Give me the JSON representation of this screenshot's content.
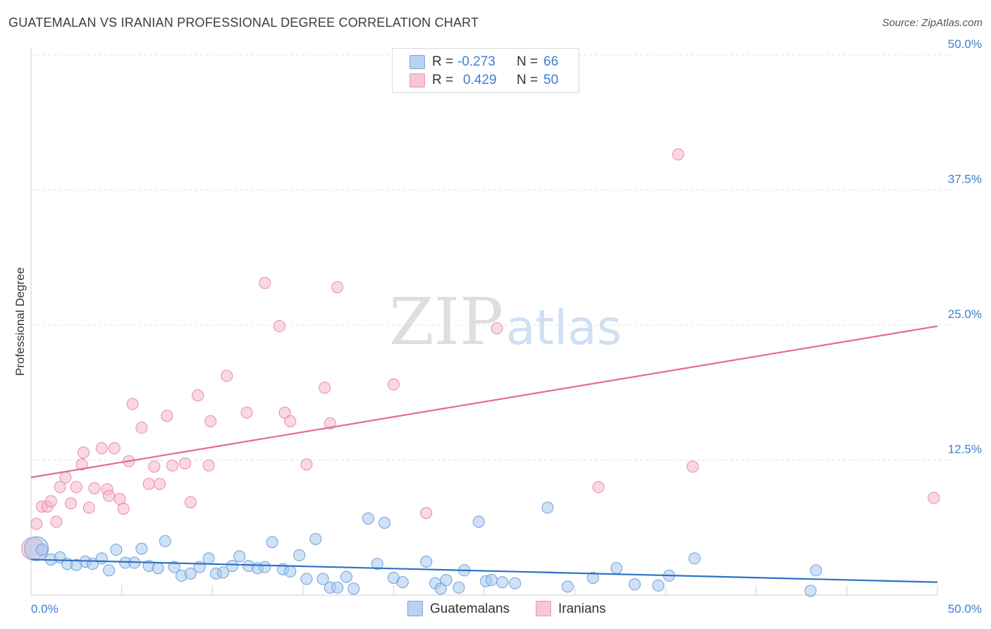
{
  "header": {
    "title": "GUATEMALAN VS IRANIAN PROFESSIONAL DEGREE CORRELATION CHART",
    "source": "Source: ZipAtlas.com"
  },
  "watermark": {
    "part1": "ZIP",
    "part2": "atlas"
  },
  "legend": {
    "guatemalans": {
      "r_label": "R =",
      "r_value": "-0.273",
      "n_label": "N =",
      "n_value": "66"
    },
    "iranians": {
      "r_label": "R =",
      "r_value": "0.429",
      "n_label": "N =",
      "n_value": "50"
    }
  },
  "bottom_legend": {
    "guatemalans": "Guatemalans",
    "iranians": "Iranians"
  },
  "colors": {
    "guatemalan_fill": "#a8c8f0",
    "guatemalan_stroke": "#6f9fd8",
    "guatemalan_line": "#2f72c4",
    "iranian_fill": "#f6b8cb",
    "iranian_stroke": "#e98aa8",
    "iranian_line": "#e46b93",
    "accent_text": "#3d7fd0"
  },
  "chart_data": {
    "type": "scatter",
    "title": "GUATEMALAN VS IRANIAN PROFESSIONAL DEGREE CORRELATION CHART",
    "xlabel": "",
    "ylabel": "Professional Degree",
    "xlim": [
      0,
      50
    ],
    "ylim": [
      0,
      50
    ],
    "x_tick_labels": [
      "0.0%",
      "50.0%"
    ],
    "y_ticks": [
      12.5,
      25.0,
      37.5,
      50.0
    ],
    "y_tick_labels": [
      "12.5%",
      "25.0%",
      "37.5%",
      "50.0%"
    ],
    "grid": true,
    "series": [
      {
        "name": "Guatemalans",
        "r": -0.273,
        "n": 66,
        "trend": {
          "x": [
            0,
            50
          ],
          "y": [
            3.3,
            1.2
          ]
        },
        "points": [
          [
            0.3,
            4.3
          ],
          [
            0.6,
            4.2
          ],
          [
            1.1,
            3.3
          ],
          [
            1.6,
            3.5
          ],
          [
            2.0,
            2.9
          ],
          [
            2.5,
            2.8
          ],
          [
            3.0,
            3.1
          ],
          [
            3.4,
            2.9
          ],
          [
            3.9,
            3.4
          ],
          [
            4.3,
            2.3
          ],
          [
            4.7,
            4.2
          ],
          [
            5.2,
            3.0
          ],
          [
            5.7,
            3.0
          ],
          [
            6.1,
            4.3
          ],
          [
            6.5,
            2.7
          ],
          [
            7.0,
            2.5
          ],
          [
            7.4,
            5.0
          ],
          [
            7.9,
            2.6
          ],
          [
            8.3,
            1.8
          ],
          [
            8.8,
            2.0
          ],
          [
            9.3,
            2.6
          ],
          [
            9.8,
            3.4
          ],
          [
            10.2,
            2.0
          ],
          [
            10.6,
            2.1
          ],
          [
            11.1,
            2.7
          ],
          [
            11.5,
            3.6
          ],
          [
            12.0,
            2.7
          ],
          [
            12.5,
            2.5
          ],
          [
            12.9,
            2.6
          ],
          [
            13.3,
            4.9
          ],
          [
            13.9,
            2.4
          ],
          [
            14.3,
            2.2
          ],
          [
            14.8,
            3.7
          ],
          [
            15.2,
            1.5
          ],
          [
            15.7,
            5.2
          ],
          [
            16.1,
            1.5
          ],
          [
            16.5,
            0.7
          ],
          [
            16.9,
            0.7
          ],
          [
            17.4,
            1.7
          ],
          [
            17.8,
            0.6
          ],
          [
            18.6,
            7.1
          ],
          [
            19.1,
            2.9
          ],
          [
            19.5,
            6.7
          ],
          [
            20.0,
            1.6
          ],
          [
            20.5,
            1.2
          ],
          [
            21.8,
            3.1
          ],
          [
            22.3,
            1.1
          ],
          [
            22.6,
            0.6
          ],
          [
            22.9,
            1.4
          ],
          [
            23.6,
            0.7
          ],
          [
            23.9,
            2.3
          ],
          [
            24.7,
            6.8
          ],
          [
            25.1,
            1.3
          ],
          [
            25.4,
            1.4
          ],
          [
            26.0,
            1.2
          ],
          [
            26.7,
            1.1
          ],
          [
            28.5,
            8.1
          ],
          [
            29.6,
            0.8
          ],
          [
            31.0,
            1.6
          ],
          [
            32.3,
            2.5
          ],
          [
            33.3,
            1.0
          ],
          [
            34.6,
            0.9
          ],
          [
            35.2,
            1.8
          ],
          [
            36.6,
            3.4
          ],
          [
            43.0,
            0.4
          ],
          [
            43.3,
            2.3
          ]
        ]
      },
      {
        "name": "Iranians",
        "r": 0.429,
        "n": 50,
        "trend": {
          "x": [
            0,
            50
          ],
          "y": [
            10.9,
            24.9
          ]
        },
        "points": [
          [
            0.3,
            6.6
          ],
          [
            0.6,
            8.2
          ],
          [
            0.9,
            8.2
          ],
          [
            1.1,
            8.7
          ],
          [
            1.4,
            6.8
          ],
          [
            1.6,
            10.0
          ],
          [
            1.9,
            10.9
          ],
          [
            2.2,
            8.5
          ],
          [
            2.5,
            10.0
          ],
          [
            2.8,
            12.1
          ],
          [
            2.9,
            13.2
          ],
          [
            3.2,
            8.1
          ],
          [
            3.5,
            9.9
          ],
          [
            3.9,
            13.6
          ],
          [
            4.2,
            9.8
          ],
          [
            4.3,
            9.2
          ],
          [
            4.6,
            13.6
          ],
          [
            4.9,
            8.9
          ],
          [
            5.1,
            8.0
          ],
          [
            5.4,
            12.4
          ],
          [
            5.6,
            17.7
          ],
          [
            6.1,
            15.5
          ],
          [
            6.5,
            10.3
          ],
          [
            6.8,
            11.9
          ],
          [
            7.1,
            10.3
          ],
          [
            7.5,
            16.6
          ],
          [
            7.8,
            12.0
          ],
          [
            8.5,
            12.2
          ],
          [
            8.8,
            8.6
          ],
          [
            9.2,
            18.5
          ],
          [
            9.8,
            12.0
          ],
          [
            9.9,
            16.1
          ],
          [
            10.8,
            20.3
          ],
          [
            11.9,
            16.9
          ],
          [
            12.9,
            28.9
          ],
          [
            13.7,
            24.9
          ],
          [
            14.0,
            16.9
          ],
          [
            14.3,
            16.1
          ],
          [
            15.2,
            12.1
          ],
          [
            16.2,
            19.2
          ],
          [
            16.5,
            15.9
          ],
          [
            16.9,
            28.5
          ],
          [
            20.0,
            19.5
          ],
          [
            21.8,
            7.6
          ],
          [
            25.7,
            24.7
          ],
          [
            31.3,
            10.0
          ],
          [
            35.7,
            40.8
          ],
          [
            36.5,
            11.9
          ],
          [
            49.8,
            9.0
          ],
          [
            0.1,
            4.3
          ]
        ]
      }
    ]
  }
}
